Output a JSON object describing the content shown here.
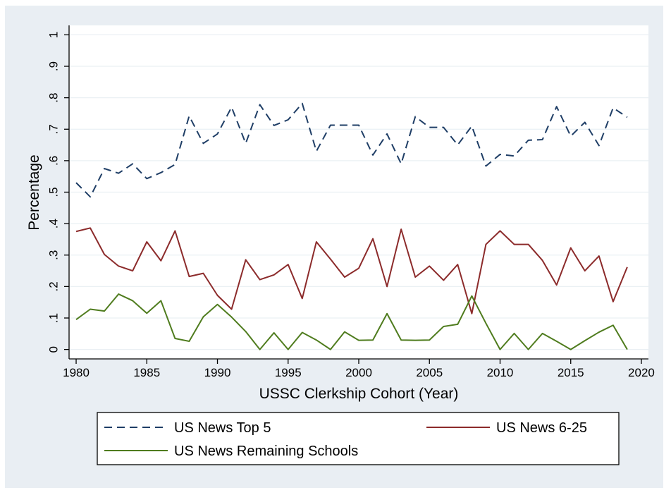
{
  "chart_data": {
    "type": "line",
    "title": "",
    "xlabel": "USSC Clerkship Cohort (Year)",
    "ylabel": "Percentage",
    "xlim": [
      1979.5,
      2020.5
    ],
    "ylim": [
      -0.03,
      1.03
    ],
    "x_ticks": [
      1980,
      1985,
      1990,
      1995,
      2000,
      2005,
      2010,
      2015,
      2020
    ],
    "x_tick_labels": [
      "1980",
      "1985",
      "1990",
      "1995",
      "2000",
      "2005",
      "2010",
      "2015",
      "2020"
    ],
    "y_ticks": [
      0,
      0.1,
      0.2,
      0.3,
      0.4,
      0.5,
      0.6,
      0.7,
      0.8,
      0.9,
      1
    ],
    "y_tick_labels": [
      "0",
      ".1",
      ".2",
      ".3",
      ".4",
      ".5",
      ".6",
      ".7",
      ".8",
      ".9",
      "1"
    ],
    "grid": true,
    "legend_position": "bottom",
    "x": [
      1980,
      1981,
      1982,
      1983,
      1984,
      1985,
      1986,
      1987,
      1988,
      1989,
      1990,
      1991,
      1992,
      1993,
      1994,
      1995,
      1996,
      1997,
      1998,
      1999,
      2000,
      2001,
      2002,
      2003,
      2004,
      2005,
      2006,
      2007,
      2008,
      2009,
      2010,
      2011,
      2012,
      2013,
      2014,
      2015,
      2016,
      2017,
      2018,
      2019
    ],
    "series": [
      {
        "name": "US News Top 5",
        "color": "#1f3e66",
        "dash": "dashed",
        "values": [
          0.53,
          0.485,
          0.575,
          0.56,
          0.59,
          0.543,
          0.562,
          0.588,
          0.742,
          0.655,
          0.685,
          0.77,
          0.655,
          0.778,
          0.712,
          0.73,
          0.782,
          0.63,
          0.713,
          0.713,
          0.713,
          0.618,
          0.685,
          0.59,
          0.74,
          0.706,
          0.706,
          0.65,
          0.71,
          0.583,
          0.62,
          0.615,
          0.665,
          0.667,
          0.772,
          0.678,
          0.722,
          0.648,
          0.768,
          0.738
        ]
      },
      {
        "name": "US News 6-25",
        "color": "#8c2b2b",
        "dash": "solid",
        "values": [
          0.375,
          0.386,
          0.302,
          0.265,
          0.25,
          0.342,
          0.282,
          0.377,
          0.232,
          0.242,
          0.172,
          0.128,
          0.285,
          0.222,
          0.237,
          0.27,
          0.162,
          0.342,
          0.287,
          0.23,
          0.258,
          0.352,
          0.2,
          0.382,
          0.23,
          0.265,
          0.22,
          0.27,
          0.114,
          0.334,
          0.377,
          0.334,
          0.334,
          0.283,
          0.205,
          0.323,
          0.25,
          0.297,
          0.152,
          0.262
        ]
      },
      {
        "name": "US News Remaining Schools",
        "color": "#4f7c1e",
        "dash": "solid",
        "values": [
          0.095,
          0.128,
          0.122,
          0.176,
          0.155,
          0.115,
          0.155,
          0.035,
          0.026,
          0.104,
          0.143,
          0.103,
          0.057,
          0,
          0.053,
          0,
          0.054,
          0.03,
          0,
          0.056,
          0.029,
          0.03,
          0.114,
          0.03,
          0.029,
          0.03,
          0.073,
          0.08,
          0.17,
          0.083,
          0,
          0.051,
          0,
          0.051,
          0.026,
          0,
          0.028,
          0.055,
          0.077,
          0
        ]
      }
    ]
  }
}
